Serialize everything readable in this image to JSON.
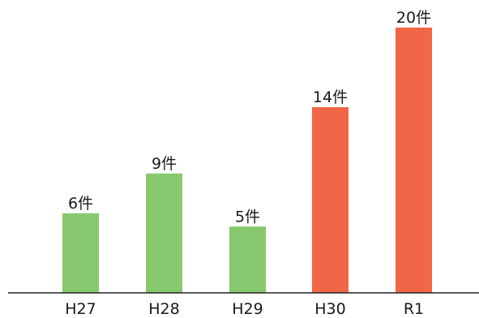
{
  "chart_data": {
    "type": "bar",
    "categories": [
      "H27",
      "H28",
      "H29",
      "H30",
      "R1"
    ],
    "values": [
      6,
      9,
      5,
      14,
      20
    ],
    "data_labels": [
      "6件",
      "9件",
      "5件",
      "14件",
      "20件"
    ],
    "bar_colors": [
      "#88c96f",
      "#88c96f",
      "#88c96f",
      "#f06646",
      "#f06646"
    ],
    "title": "",
    "xlabel": "",
    "ylabel": "",
    "ylim": [
      0,
      20
    ],
    "grid": false,
    "legend": "none"
  },
  "colors": {
    "green": "#88c96f",
    "orange": "#f06646",
    "axis": "#222222"
  }
}
